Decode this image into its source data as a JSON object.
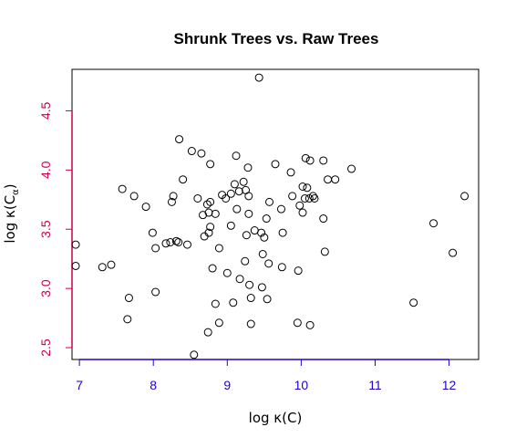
{
  "chart_data": {
    "type": "scatter",
    "title": "Shrunk Trees vs. Raw Trees",
    "xlabel": "log κ(C)",
    "ylabel_main": "log κ(C",
    "ylabel_sub": "α",
    "ylabel_close": ")",
    "xlim": [
      6.9,
      12.4
    ],
    "ylim": [
      2.4,
      4.85
    ],
    "xticks": [
      "7",
      "8",
      "9",
      "10",
      "11",
      "12"
    ],
    "yticks": [
      "2.5",
      "3.0",
      "3.5",
      "4.0",
      "4.5"
    ],
    "x_tick_color": "#2200cc",
    "y_tick_color": "#cc0044",
    "grid": false,
    "points": [
      [
        9.43,
        4.78
      ],
      [
        8.35,
        4.26
      ],
      [
        9.65,
        4.05
      ],
      [
        8.52,
        4.16
      ],
      [
        8.65,
        4.14
      ],
      [
        9.12,
        4.12
      ],
      [
        8.77,
        4.05
      ],
      [
        9.28,
        4.02
      ],
      [
        8.4,
        3.92
      ],
      [
        9.22,
        3.9
      ],
      [
        9.1,
        3.88
      ],
      [
        10.12,
        4.08
      ],
      [
        10.06,
        4.1
      ],
      [
        10.3,
        4.08
      ],
      [
        10.68,
        4.01
      ],
      [
        9.86,
        3.98
      ],
      [
        7.58,
        3.84
      ],
      [
        7.74,
        3.78
      ],
      [
        7.9,
        3.69
      ],
      [
        8.27,
        3.78
      ],
      [
        8.25,
        3.73
      ],
      [
        8.6,
        3.76
      ],
      [
        8.73,
        3.71
      ],
      [
        8.77,
        3.73
      ],
      [
        8.93,
        3.79
      ],
      [
        8.98,
        3.76
      ],
      [
        9.05,
        3.8
      ],
      [
        9.16,
        3.82
      ],
      [
        9.25,
        3.83
      ],
      [
        9.29,
        3.78
      ],
      [
        9.57,
        3.73
      ],
      [
        9.88,
        3.78
      ],
      [
        10.02,
        3.86
      ],
      [
        10.08,
        3.85
      ],
      [
        10.16,
        3.78
      ],
      [
        10.36,
        3.92
      ],
      [
        10.46,
        3.92
      ],
      [
        10.05,
        3.76
      ],
      [
        10.11,
        3.76
      ],
      [
        10.18,
        3.76
      ],
      [
        12.21,
        3.78
      ],
      [
        8.67,
        3.62
      ],
      [
        8.75,
        3.64
      ],
      [
        8.84,
        3.63
      ],
      [
        9.13,
        3.67
      ],
      [
        9.29,
        3.63
      ],
      [
        9.73,
        3.67
      ],
      [
        9.98,
        3.7
      ],
      [
        10.02,
        3.64
      ],
      [
        10.3,
        3.59
      ],
      [
        9.53,
        3.59
      ],
      [
        9.05,
        3.53
      ],
      [
        8.77,
        3.52
      ],
      [
        8.75,
        3.47
      ],
      [
        8.69,
        3.44
      ],
      [
        7.99,
        3.47
      ],
      [
        9.26,
        3.45
      ],
      [
        9.37,
        3.49
      ],
      [
        9.46,
        3.47
      ],
      [
        9.5,
        3.43
      ],
      [
        9.75,
        3.47
      ],
      [
        11.79,
        3.55
      ],
      [
        8.17,
        3.38
      ],
      [
        8.23,
        3.39
      ],
      [
        8.31,
        3.4
      ],
      [
        8.34,
        3.39
      ],
      [
        8.46,
        3.37
      ],
      [
        8.03,
        3.34
      ],
      [
        6.95,
        3.37
      ],
      [
        9.48,
        3.29
      ],
      [
        10.32,
        3.31
      ],
      [
        12.05,
        3.3
      ],
      [
        8.89,
        3.34
      ],
      [
        7.43,
        3.2
      ],
      [
        7.31,
        3.18
      ],
      [
        6.95,
        3.19
      ],
      [
        8.8,
        3.17
      ],
      [
        9.24,
        3.23
      ],
      [
        9.56,
        3.21
      ],
      [
        9.74,
        3.18
      ],
      [
        9.96,
        3.15
      ],
      [
        9.0,
        3.13
      ],
      [
        9.17,
        3.08
      ],
      [
        9.3,
        3.03
      ],
      [
        9.47,
        3.01
      ],
      [
        8.03,
        2.97
      ],
      [
        7.67,
        2.92
      ],
      [
        8.84,
        2.87
      ],
      [
        9.08,
        2.88
      ],
      [
        9.32,
        2.92
      ],
      [
        9.54,
        2.91
      ],
      [
        11.52,
        2.88
      ],
      [
        7.65,
        2.74
      ],
      [
        8.89,
        2.71
      ],
      [
        9.32,
        2.7
      ],
      [
        9.95,
        2.71
      ],
      [
        10.12,
        2.69
      ],
      [
        8.74,
        2.63
      ],
      [
        8.55,
        2.44
      ]
    ]
  }
}
